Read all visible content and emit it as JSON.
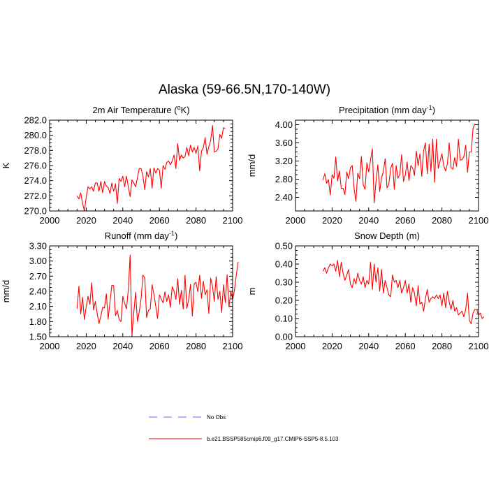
{
  "figure": {
    "title": "Alaska (59-66.5N,170-140W)"
  },
  "legend": {
    "entries": [
      {
        "label": "No Obs",
        "color": "#6666ff",
        "style": "dashed"
      },
      {
        "label": "b.e21.BSSP585cmip6.f09_g17.CMIP6-SSP5-8.5.103",
        "color": "#ff0000",
        "style": "solid"
      }
    ]
  },
  "chart_data": [
    {
      "id": "temp",
      "type": "line",
      "title": "2m Air Temperature (",
      "title_sup": "o",
      "title_after": "K)",
      "xlabel": "",
      "ylabel": "K",
      "xlim": [
        2000,
        2100
      ],
      "ylim": [
        270,
        282
      ],
      "xticks": [
        2000,
        2020,
        2040,
        2060,
        2080,
        2100
      ],
      "xtick_labels": [
        "2000",
        "2020",
        "2040",
        "2060",
        "2080",
        "2100"
      ],
      "yticks": [
        270,
        272,
        274,
        276,
        278,
        280,
        282
      ],
      "ytick_labels": [
        "270.0",
        "272.0",
        "274.0",
        "276.0",
        "278.0",
        "280.0",
        "282.0"
      ],
      "series": [
        {
          "name": "b.e21.BSSP585cmip6.f09_g17.CMIP6-SSP5-8.5.103",
          "color": "#ff0000",
          "x_start": 2015,
          "values": [
            272.0,
            271.6,
            272.4,
            271.0,
            270.0,
            271.8,
            273.2,
            272.9,
            273.2,
            272.6,
            273.7,
            273.7,
            272.6,
            273.9,
            272.4,
            273.9,
            273.3,
            273.1,
            272.3,
            273.7,
            272.6,
            273.6,
            271.0,
            274.3,
            273.9,
            274.6,
            273.2,
            274.6,
            273.2,
            271.9,
            274.1,
            273.7,
            273.2,
            274.4,
            275.6,
            275.6,
            274.6,
            272.8,
            275.2,
            274.5,
            275.6,
            273.0,
            275.7,
            275.0,
            275.6,
            275.4,
            273.0,
            276.0,
            275.5,
            276.4,
            276.6,
            276.1,
            276.6,
            277.4,
            275.6,
            278.9,
            276.7,
            277.4,
            277.0,
            277.2,
            278.4,
            277.3,
            278.7,
            277.8,
            278.4,
            277.6,
            278.6,
            275.3,
            277.9,
            278.4,
            279.7,
            277.5,
            278.5,
            279.3,
            281.3,
            277.8,
            277.9,
            278.2,
            280.1,
            279.6,
            281.0,
            280.9
          ]
        }
      ]
    },
    {
      "id": "precip",
      "type": "line",
      "title": "Precipitation (mm day",
      "title_sup": "-1",
      "title_after": ")",
      "xlabel": "",
      "ylabel": "mm/d",
      "xlim": [
        2000,
        2100
      ],
      "ylim": [
        2.1,
        4.1
      ],
      "xticks": [
        2000,
        2020,
        2040,
        2060,
        2080,
        2100
      ],
      "xtick_labels": [
        "2000",
        "2020",
        "2040",
        "2060",
        "2080",
        "2100"
      ],
      "yticks": [
        2.4,
        2.8,
        3.2,
        3.6,
        4.0
      ],
      "ytick_labels": [
        "2.40",
        "2.80",
        "3.20",
        "3.60",
        "4.00"
      ],
      "series": [
        {
          "name": "b.e21.BSSP585cmip6.f09_g17.CMIP6-SSP5-8.5.103",
          "color": "#ff0000",
          "x_start": 2015,
          "values": [
            2.78,
            2.92,
            2.71,
            2.79,
            2.45,
            2.9,
            2.82,
            3.29,
            2.76,
            2.98,
            2.6,
            2.6,
            2.46,
            2.96,
            2.81,
            3.05,
            3.1,
            2.6,
            2.31,
            2.93,
            2.81,
            3.3,
            2.68,
            2.58,
            3.16,
            2.96,
            3.22,
            3.47,
            2.28,
            2.76,
            3.12,
            2.53,
            2.82,
            2.97,
            3.25,
            2.61,
            2.69,
            3.04,
            3.15,
            2.58,
            3.1,
            2.82,
            2.91,
            3.34,
            2.75,
            2.89,
            3.18,
            2.77,
            3.1,
            3.05,
            2.88,
            3.42,
            3.1,
            3.36,
            2.86,
            3.43,
            3.6,
            2.92,
            3.57,
            2.97,
            3.68,
            2.73,
            3.68,
            3.04,
            3.2,
            3.36,
            3.1,
            2.98,
            3.14,
            3.6,
            3.06,
            3.02,
            3.28,
            3.08,
            3.68,
            3.22,
            3.23,
            3.3,
            3.55,
            2.95,
            3.4,
            3.4,
            3.92,
            4.02
          ]
        }
      ]
    },
    {
      "id": "runoff",
      "type": "line",
      "title": "Runoff (mm day",
      "title_sup": "-1",
      "title_after": ")",
      "xlabel": "",
      "ylabel": "mm/d",
      "xlim": [
        2000,
        2100
      ],
      "ylim": [
        1.5,
        3.3
      ],
      "xticks": [
        2000,
        2020,
        2040,
        2060,
        2080,
        2100
      ],
      "xtick_labels": [
        "2000",
        "2020",
        "2040",
        "2060",
        "2080",
        "2100"
      ],
      "yticks": [
        1.5,
        1.8,
        2.1,
        2.4,
        2.7,
        3.0,
        3.3
      ],
      "ytick_labels": [
        "1.50",
        "1.80",
        "2.10",
        "2.40",
        "2.70",
        "3.00",
        "3.30"
      ],
      "series": [
        {
          "name": "b.e21.BSSP585cmip6.f09_g17.CMIP6-SSP5-8.5.103",
          "color": "#ff0000",
          "x_start": 2015,
          "values": [
            2.06,
            2.5,
            1.95,
            2.28,
            1.84,
            2.1,
            2.3,
            2.14,
            2.57,
            2.03,
            2.2,
            1.96,
            1.76,
            1.91,
            2.08,
            2.07,
            2.35,
            1.85,
            2.19,
            2.52,
            2.51,
            1.92,
            2.02,
            1.84,
            1.8,
            2.3,
            2.16,
            2.05,
            2.43,
            3.12,
            1.53,
            1.98,
            2.38,
            1.8,
            2.0,
            2.26,
            2.72,
            2.67,
            1.88,
            2.02,
            2.05,
            2.53,
            2.34,
            2.1,
            1.86,
            2.33,
            2.25,
            2.17,
            2.39,
            2.2,
            2.33,
            2.08,
            2.49,
            2.4,
            2.24,
            2.65,
            2.14,
            2.42,
            2.05,
            2.72,
            2.06,
            2.24,
            2.54,
            1.91,
            2.55,
            2.58,
            2.39,
            2.72,
            2.26,
            2.6,
            2.33,
            2.43,
            1.96,
            2.66,
            2.5,
            2.2,
            2.69,
            2.24,
            2.4,
            1.98,
            2.53,
            2.18,
            2.73,
            2.09,
            2.4,
            2.24,
            2.42,
            2.72,
            2.98
          ]
        }
      ]
    },
    {
      "id": "snow",
      "type": "line",
      "title": "Snow Depth (m)",
      "title_sup": "",
      "title_after": "",
      "xlabel": "",
      "ylabel": "m",
      "xlim": [
        2000,
        2100
      ],
      "ylim": [
        0.0,
        0.5
      ],
      "xticks": [
        2000,
        2020,
        2040,
        2060,
        2080,
        2100
      ],
      "xtick_labels": [
        "2000",
        "2020",
        "2040",
        "2060",
        "2080",
        "2100"
      ],
      "yticks": [
        0.0,
        0.1,
        0.2,
        0.3,
        0.4,
        0.5
      ],
      "ytick_labels": [
        "0.00",
        "0.10",
        "0.20",
        "0.30",
        "0.40",
        "0.50"
      ],
      "series": [
        {
          "name": "b.e21.BSSP585cmip6.f09_g17.CMIP6-SSP5-8.5.103",
          "color": "#ff0000",
          "x_start": 2015,
          "values": [
            0.36,
            0.38,
            0.35,
            0.38,
            0.4,
            0.39,
            0.4,
            0.36,
            0.42,
            0.33,
            0.41,
            0.35,
            0.31,
            0.34,
            0.37,
            0.29,
            0.27,
            0.32,
            0.29,
            0.35,
            0.31,
            0.29,
            0.33,
            0.27,
            0.31,
            0.29,
            0.41,
            0.26,
            0.4,
            0.3,
            0.38,
            0.25,
            0.37,
            0.24,
            0.31,
            0.27,
            0.23,
            0.22,
            0.34,
            0.3,
            0.31,
            0.27,
            0.31,
            0.24,
            0.27,
            0.31,
            0.24,
            0.29,
            0.19,
            0.27,
            0.24,
            0.17,
            0.28,
            0.18,
            0.19,
            0.14,
            0.21,
            0.26,
            0.19,
            0.21,
            0.22,
            0.21,
            0.23,
            0.21,
            0.23,
            0.17,
            0.24,
            0.16,
            0.25,
            0.19,
            0.15,
            0.2,
            0.14,
            0.16,
            0.12,
            0.13,
            0.14,
            0.11,
            0.15,
            0.24,
            0.09,
            0.07,
            0.13,
            0.15,
            0.15,
            0.12,
            0.13,
            0.1,
            0.11
          ]
        }
      ]
    }
  ]
}
